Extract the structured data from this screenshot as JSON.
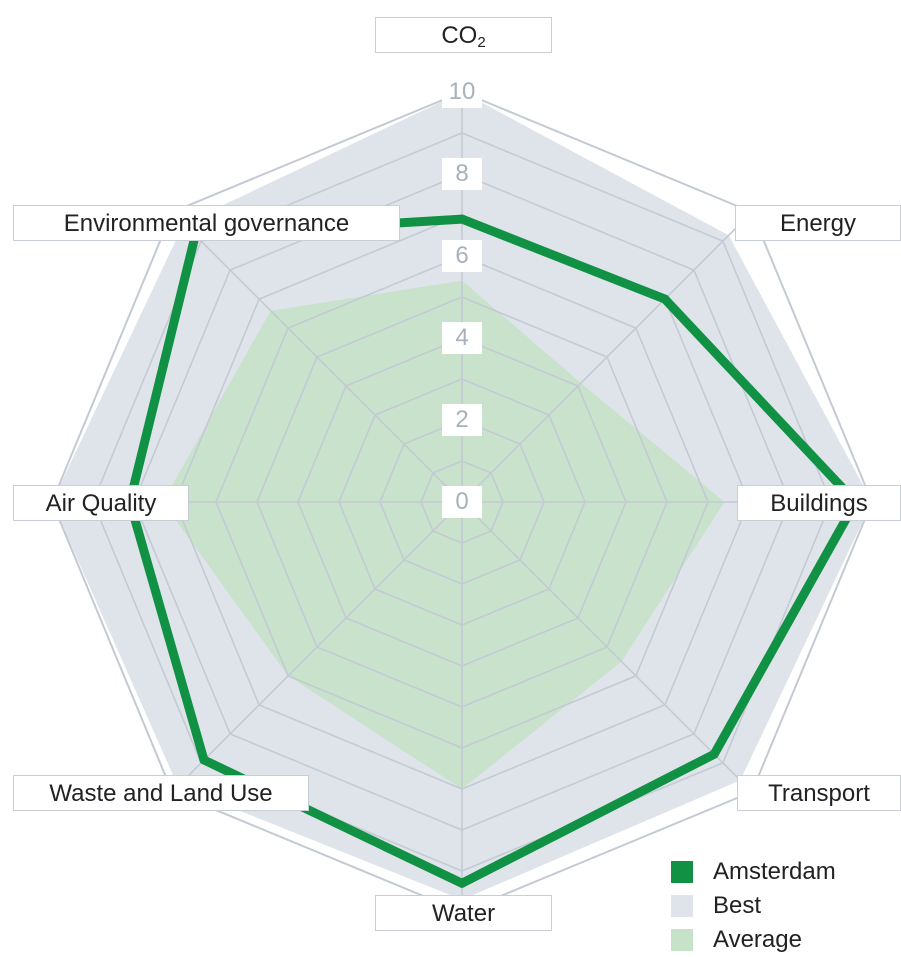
{
  "chart_data": {
    "type": "radar",
    "axes": [
      {
        "label": "CO",
        "subscript": "2"
      },
      {
        "label": "Energy"
      },
      {
        "label": "Buildings"
      },
      {
        "label": "Transport"
      },
      {
        "label": "Water"
      },
      {
        "label": "Waste and Land Use"
      },
      {
        "label": "Air Quality"
      },
      {
        "label": "Environmental governance"
      }
    ],
    "range": [
      0,
      10
    ],
    "ticks": [
      "0",
      "2",
      "4",
      "6",
      "8",
      "10"
    ],
    "series": [
      {
        "name": "Best",
        "values": [
          10,
          9.2,
          10,
          9.6,
          9.7,
          9.8,
          10,
          9.6
        ],
        "color": "#dfe4eb"
      },
      {
        "name": "Average",
        "values": [
          5.4,
          4.1,
          6.4,
          5.5,
          7.0,
          6.0,
          7.3,
          6.6
        ],
        "color": "#c6e2c9"
      },
      {
        "name": "Amsterdam",
        "values": [
          6.9,
          7.0,
          9.6,
          8.7,
          9.3,
          8.9,
          8.1,
          9.2
        ],
        "color": "#109143"
      }
    ],
    "grid": true,
    "legend_position": "bottom-right"
  }
}
